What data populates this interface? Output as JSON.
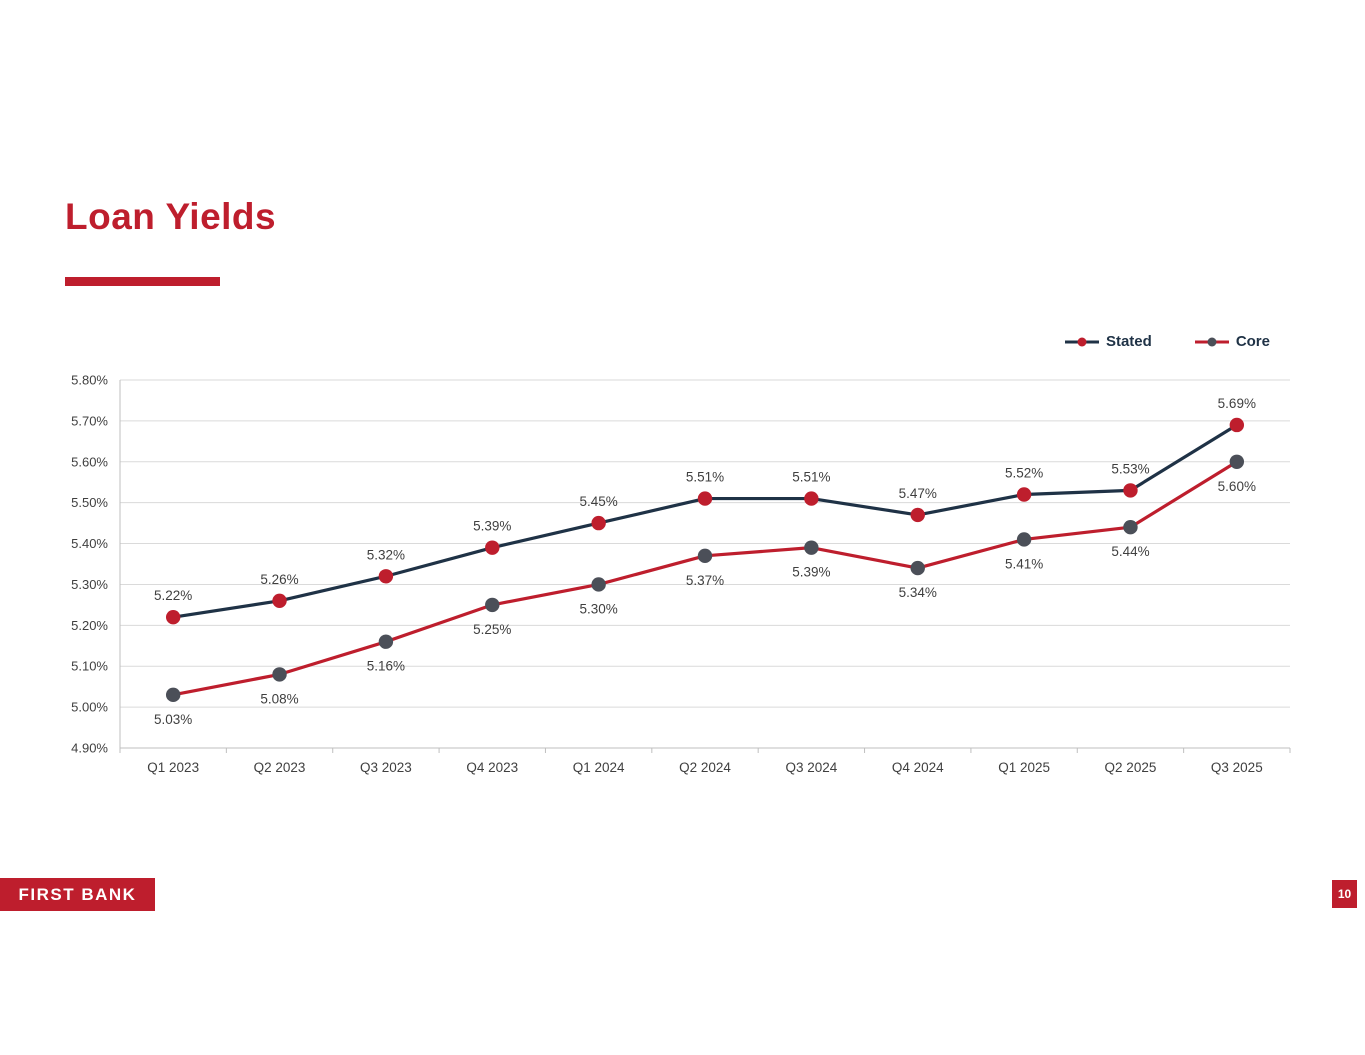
{
  "slide": {
    "title": "Loan Yields",
    "footer_brand": "FIRST BANK",
    "page_number": "10"
  },
  "colors": {
    "accent_red": "#BE1E2D",
    "navy": "#1F3246",
    "marker_gray": "#4B4F58",
    "grid_line": "#DADADA",
    "axis_line": "#BFBFBF",
    "label_text": "#3F3F3F"
  },
  "chart_data": {
    "type": "line",
    "title": "Loan Yields",
    "categories": [
      "Q1 2023",
      "Q2 2023",
      "Q3 2023",
      "Q4 2023",
      "Q1 2024",
      "Q2 2024",
      "Q3 2024",
      "Q4 2024",
      "Q1 2025",
      "Q2 2025",
      "Q3 2025"
    ],
    "series": [
      {
        "name": "Stated",
        "values": [
          5.22,
          5.26,
          5.32,
          5.39,
          5.45,
          5.51,
          5.51,
          5.47,
          5.52,
          5.53,
          5.69
        ],
        "line_color": "#1F3246",
        "marker_color": "#BE1E2D",
        "label_position": "above"
      },
      {
        "name": "Core",
        "values": [
          5.03,
          5.08,
          5.16,
          5.25,
          5.3,
          5.37,
          5.39,
          5.34,
          5.41,
          5.44,
          5.6
        ],
        "line_color": "#BE1E2D",
        "marker_color": "#4B4F58",
        "label_position": "below"
      }
    ],
    "ylim": [
      4.9,
      5.8
    ],
    "ytick_step": 0.1,
    "ytick_labels": [
      "4.90%",
      "5.00%",
      "5.10%",
      "5.20%",
      "5.30%",
      "5.40%",
      "5.50%",
      "5.60%",
      "5.70%",
      "5.80%"
    ],
    "value_format": "0.00%",
    "grid": true,
    "legend_position": "top-right"
  }
}
